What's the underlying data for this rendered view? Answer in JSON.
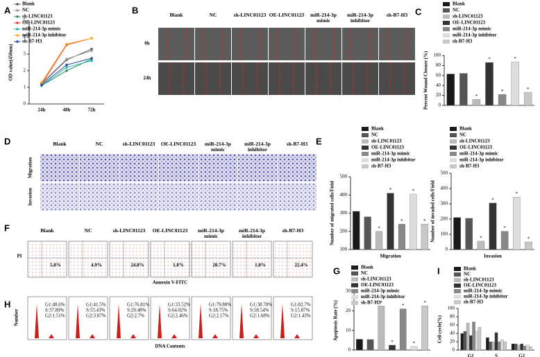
{
  "chart_data": [
    {
      "type": "line",
      "categories": [
        "24h",
        "48h",
        "72h"
      ],
      "ylabel": "OD value(450nm)",
      "ylim": [
        0,
        5
      ],
      "yticks": [
        0,
        1,
        2,
        3,
        4,
        5
      ],
      "series": [
        {
          "name": "Blank",
          "color": "#555555",
          "values": [
            1.2,
            2.65,
            3.3
          ]
        },
        {
          "name": "NC",
          "color": "#999999",
          "values": [
            1.25,
            2.7,
            3.2
          ]
        },
        {
          "name": "sh-LINC01123",
          "color": "#2e8b57",
          "values": [
            1.1,
            2.0,
            2.7
          ]
        },
        {
          "name": "OE-LINC01123",
          "color": "#e8402a",
          "values": [
            1.2,
            3.55,
            3.95
          ]
        },
        {
          "name": "miR-214-3p mimic",
          "color": "#20b2aa",
          "values": [
            1.1,
            2.2,
            2.6
          ]
        },
        {
          "name": "miR-214-3p inhibitor",
          "color": "#f5a623",
          "values": [
            1.3,
            3.6,
            3.95
          ]
        },
        {
          "name": "sh-B7-H3",
          "color": "#2a4fa0",
          "values": [
            1.15,
            2.35,
            2.75
          ]
        }
      ]
    },
    {
      "type": "bar",
      "categories": [
        "Blank",
        "NC",
        "sh-LINC01123",
        "OE-LINC01123",
        "miR-214-3p mimic",
        "miR-214-3p inhibitor",
        "sh-B7-H3"
      ],
      "values": [
        63,
        64,
        12,
        86,
        22,
        87,
        26
      ],
      "colors": [
        "#1a1a1a",
        "#555555",
        "#bbbbbb",
        "#333333",
        "#888888",
        "#dddddd",
        "#c8c8c8"
      ],
      "significant": [
        false,
        false,
        true,
        true,
        true,
        true,
        true
      ],
      "marker": "*",
      "ylabel": "Percent Wound Closure (%)",
      "ylim": [
        0,
        100
      ],
      "yticks": [
        0,
        20,
        40,
        60,
        80,
        100
      ]
    },
    {
      "type": "bar",
      "categories": [
        "Blank",
        "NC",
        "sh-LINC01123",
        "OE-LINC01123",
        "miR-214-3p mimic",
        "miR-214-3p inhibitor",
        "sh-B7-H3"
      ],
      "values": [
        310,
        280,
        200,
        410,
        240,
        405,
        240
      ],
      "colors": [
        "#1a1a1a",
        "#555555",
        "#bbbbbb",
        "#333333",
        "#888888",
        "#dddddd",
        "#c8c8c8"
      ],
      "significant": [
        false,
        false,
        true,
        true,
        true,
        true,
        true
      ],
      "marker": "*",
      "xlabel": "Migration",
      "ylabel": "Number of migrated cells/Field",
      "ylim": [
        100,
        500
      ],
      "yticks": [
        100,
        200,
        300,
        400,
        500
      ]
    },
    {
      "type": "bar",
      "categories": [
        "Blank",
        "NC",
        "sh-LINC01123",
        "OE-LINC01123",
        "miR-214-3p mimic",
        "miR-214-3p inhibitor",
        "sh-B7-H3"
      ],
      "values": [
        210,
        205,
        55,
        305,
        120,
        345,
        50
      ],
      "colors": [
        "#1a1a1a",
        "#555555",
        "#bbbbbb",
        "#333333",
        "#888888",
        "#dddddd",
        "#c8c8c8"
      ],
      "significant": [
        false,
        false,
        true,
        true,
        true,
        true,
        true
      ],
      "marker": "*",
      "xlabel": "Invasion",
      "ylabel": "Number of invaded cells/Field",
      "ylim": [
        0,
        500
      ],
      "yticks": [
        0,
        100,
        200,
        300,
        400,
        500
      ]
    },
    {
      "type": "bar",
      "categories": [
        "Blank",
        "NC",
        "sh-LINC01123",
        "OE-LINC01123",
        "miR-214-3p mimic",
        "miR-214-3p inhibitor",
        "sh-B7-H3"
      ],
      "values": [
        5.5,
        5.4,
        22.5,
        2.5,
        21,
        1.8,
        22.5
      ],
      "colors": [
        "#1a1a1a",
        "#555555",
        "#bbbbbb",
        "#333333",
        "#888888",
        "#dddddd",
        "#c8c8c8"
      ],
      "significant": [
        false,
        false,
        true,
        true,
        true,
        true,
        true
      ],
      "marker": "*",
      "ylabel": "Apoptosis Rate (%)",
      "ylim": [
        0,
        30
      ],
      "yticks": [
        0,
        10,
        20,
        30
      ]
    },
    {
      "type": "grouped",
      "categories": [
        "G1",
        "S",
        "G2"
      ],
      "ylabel": "Cell cycle(%)",
      "ylim": [
        0,
        100
      ],
      "yticks": [
        0,
        20,
        40,
        60,
        80,
        100
      ],
      "series": [
        {
          "name": "Blank",
          "color": "#1a1a1a",
          "values": [
            40,
            30,
            15
          ]
        },
        {
          "name": "NC",
          "color": "#555555",
          "values": [
            45,
            20,
            15
          ]
        },
        {
          "name": "sh-LINC01123",
          "color": "#bbbbbb",
          "values": [
            65,
            20,
            12
          ]
        },
        {
          "name": "OE-LINC01123",
          "color": "#333333",
          "values": [
            35,
            42,
            15
          ]
        },
        {
          "name": "miR-214-3p mimic",
          "color": "#888888",
          "values": [
            68,
            20,
            10
          ]
        },
        {
          "name": "miR-214-3p inhibitor",
          "color": "#dddddd",
          "values": [
            45,
            25,
            12
          ]
        },
        {
          "name": "sh-B7-H3",
          "color": "#c8c8c8",
          "values": [
            55,
            20,
            8
          ]
        }
      ]
    }
  ],
  "letters": [
    "A",
    "B",
    "C",
    "D",
    "E",
    "F",
    "G",
    "H",
    "I"
  ],
  "columns": [
    "Blank",
    "NC",
    "sh-LINC01123",
    "OE-LINC01123",
    "miR-214-3p mimic",
    "miR-214-3p inhibitor",
    "sh-B7-H3"
  ],
  "panel_b": {
    "rows": [
      "0h",
      "24h"
    ]
  },
  "panel_d": {
    "rows": [
      "Migration",
      "Invasion"
    ]
  },
  "panel_f": {
    "ylabel": "PI",
    "xlabel": "Annexin V-FITC",
    "percentages": [
      "5.8%",
      "4.9%",
      "24.8%",
      "1.8%",
      "20.7%",
      "1.8%",
      "22.4%"
    ]
  },
  "panel_h": {
    "ylabel": "Number",
    "xlabel": "DNA Contents",
    "stats": [
      [
        "G1:48.6%",
        "S:37.89%",
        "G2:1.51%"
      ],
      [
        "G1:41.5%",
        "S:55.43%",
        "G2:3.07%"
      ],
      [
        "G1:76.81%",
        "S:20.48%",
        "G2:2.7%"
      ],
      [
        "G1:33.52%",
        "S:64.02%",
        "G2:2.46%"
      ],
      [
        "G1:79.88%",
        "S:18.75%",
        "G2:2.17%"
      ],
      [
        "G1:38.78%",
        "S:58.54%",
        "G2:1.68%"
      ],
      [
        "G1:82.7%",
        "S:15.87%",
        "G2:1.43%"
      ]
    ]
  }
}
